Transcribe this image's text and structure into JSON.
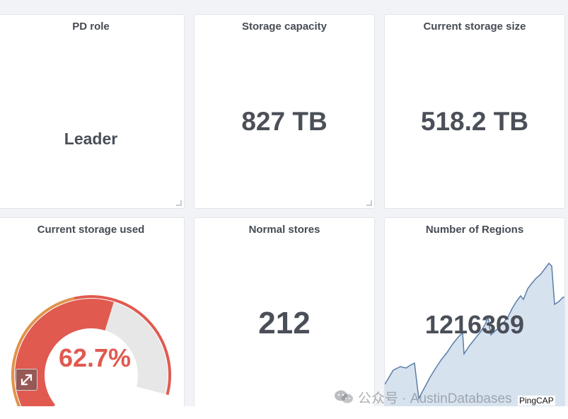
{
  "panels": {
    "pd_role": {
      "title": "PD role",
      "value": "Leader"
    },
    "storage_capacity": {
      "title": "Storage capacity",
      "value": "827 TB"
    },
    "current_storage_size": {
      "title": "Current storage size",
      "value": "518.2 TB"
    },
    "current_storage_used": {
      "title": "Current storage used",
      "value": "62.7%",
      "percent": 62.7
    },
    "normal_stores": {
      "title": "Normal stores",
      "value": "212"
    },
    "number_of_regions": {
      "title": "Number of Regions",
      "value": "1216369"
    }
  },
  "colors": {
    "gauge_red": "#e05a50",
    "gauge_track": "#e7e7e8",
    "gauge_orange": "#e0934a",
    "sparkline_fill": "#d7e2ef",
    "sparkline_line": "#5b7ea6"
  },
  "watermark": {
    "icon": "wechat-icon",
    "text": "公众号 · AustinDatabases"
  },
  "brand": "PingCAP",
  "icons": {
    "expand": "expand-arrows-icon"
  }
}
